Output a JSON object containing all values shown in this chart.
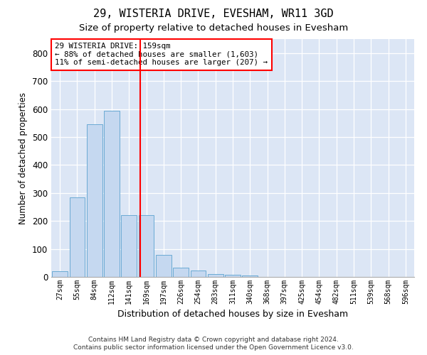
{
  "title1": "29, WISTERIA DRIVE, EVESHAM, WR11 3GD",
  "title2": "Size of property relative to detached houses in Evesham",
  "xlabel": "Distribution of detached houses by size in Evesham",
  "ylabel": "Number of detached properties",
  "footer1": "Contains HM Land Registry data © Crown copyright and database right 2024.",
  "footer2": "Contains public sector information licensed under the Open Government Licence v3.0.",
  "annotation_line1": "29 WISTERIA DRIVE: 159sqm",
  "annotation_line2": "← 88% of detached houses are smaller (1,603)",
  "annotation_line3": "11% of semi-detached houses are larger (207) →",
  "bin_labels": [
    "27sqm",
    "55sqm",
    "84sqm",
    "112sqm",
    "141sqm",
    "169sqm",
    "197sqm",
    "226sqm",
    "254sqm",
    "283sqm",
    "311sqm",
    "340sqm",
    "368sqm",
    "397sqm",
    "425sqm",
    "454sqm",
    "482sqm",
    "511sqm",
    "539sqm",
    "568sqm",
    "596sqm"
  ],
  "bar_values": [
    20,
    285,
    545,
    595,
    220,
    220,
    78,
    33,
    22,
    10,
    8,
    5,
    0,
    0,
    0,
    0,
    0,
    0,
    0,
    0,
    0
  ],
  "bar_color": "#c5d8f0",
  "bar_edge_color": "#6aaad4",
  "marker_color": "red",
  "ylim": [
    0,
    850
  ],
  "yticks": [
    0,
    100,
    200,
    300,
    400,
    500,
    600,
    700,
    800
  ],
  "background_color": "#dce6f5",
  "grid_color": "#ffffff",
  "title_fontsize": 11,
  "subtitle_fontsize": 9.5,
  "annotation_box_color": "white",
  "annotation_box_edge_color": "red",
  "footer_fontsize": 6.5
}
